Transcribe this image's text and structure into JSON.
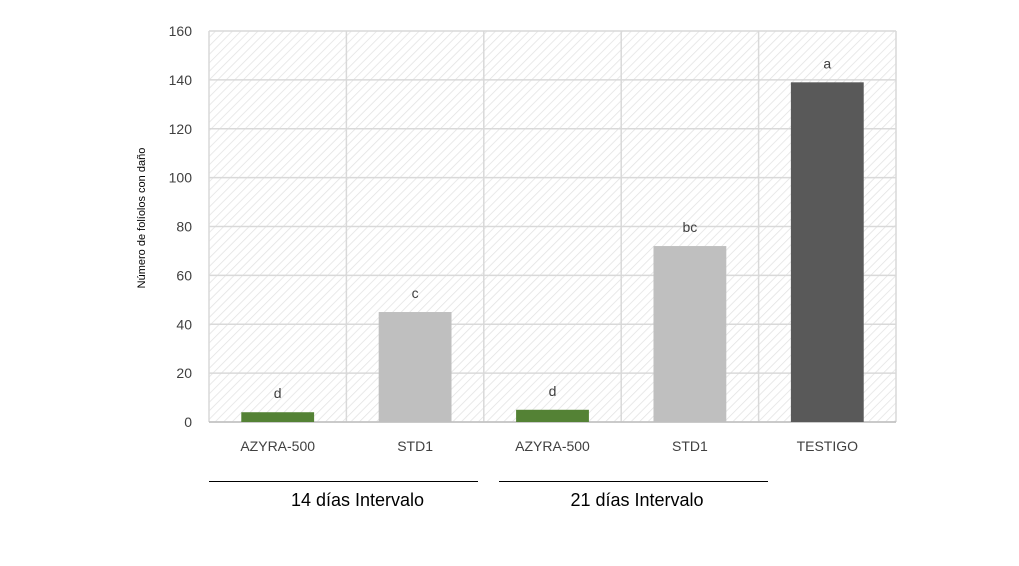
{
  "chart_data": {
    "type": "bar",
    "ylabel": "Número de folíolos con daño",
    "ylim": [
      0,
      160
    ],
    "yticks": [
      0,
      20,
      40,
      60,
      80,
      100,
      120,
      140,
      160
    ],
    "grid": true,
    "categories": [
      "AZYRA-500",
      "STD1",
      "AZYRA-500",
      "STD1",
      "TESTIGO"
    ],
    "values": [
      4,
      45,
      5,
      72,
      139
    ],
    "data_labels": [
      "d",
      "c",
      "d",
      "bc",
      "a"
    ],
    "colors": [
      "#548235",
      "#bfbfbf",
      "#548235",
      "#bfbfbf",
      "#595959"
    ],
    "groups": [
      {
        "label": "14 días Intervalo"
      },
      {
        "label": "21 días Intervalo"
      }
    ]
  }
}
